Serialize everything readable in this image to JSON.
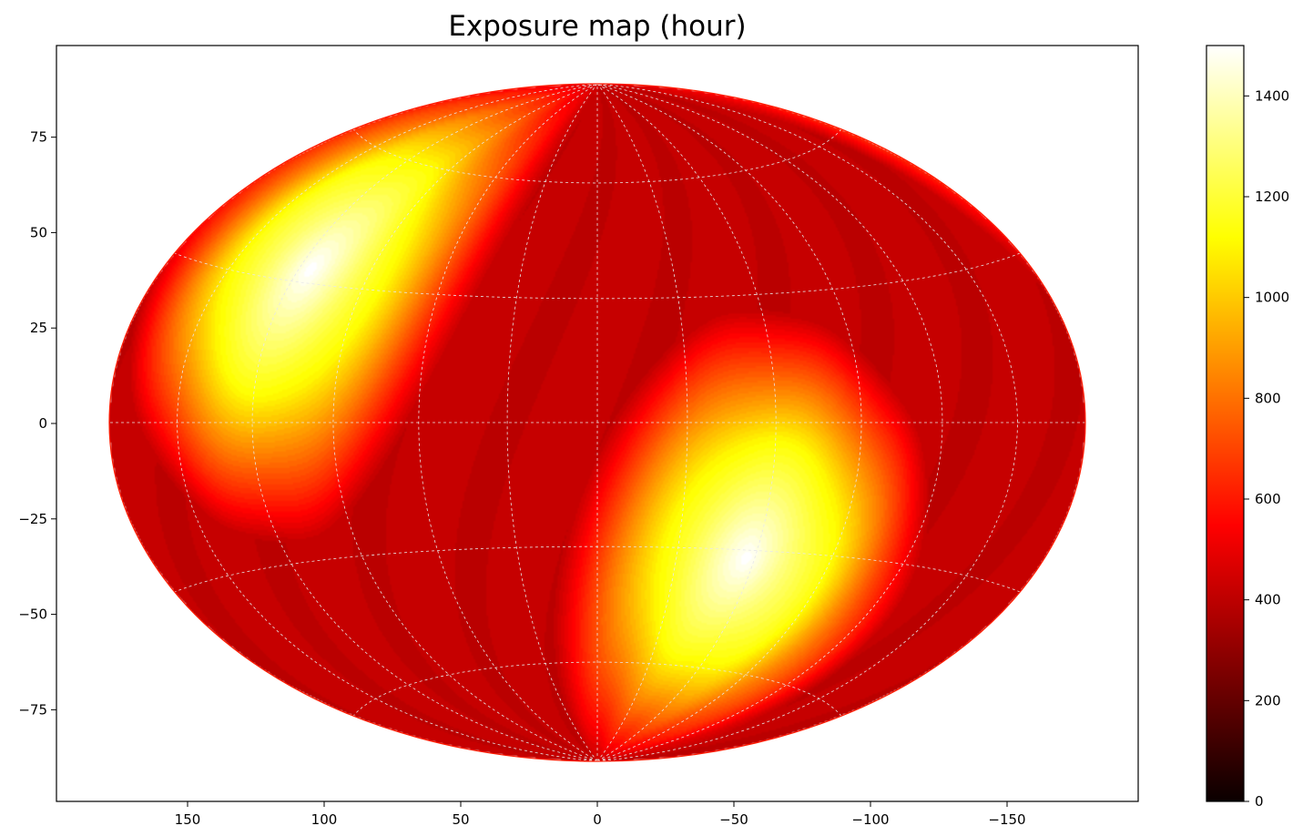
{
  "chart_data": {
    "type": "heatmap",
    "projection": "hammer-aitoff",
    "title": "Exposure map (hour)",
    "xlabel": "",
    "ylabel": "",
    "x_axis": {
      "direction": "reversed",
      "ticks": [
        150,
        100,
        50,
        0,
        -50,
        -100,
        -150
      ],
      "tick_labels": [
        "150",
        "100",
        "50",
        "0",
        "−50",
        "−100",
        "−150"
      ],
      "range": [
        198,
        -198
      ]
    },
    "y_axis": {
      "ticks": [
        75,
        50,
        25,
        0,
        -25,
        -50,
        -75
      ],
      "tick_labels": [
        "75",
        "50",
        "25",
        "0",
        "−25",
        "−50",
        "−75"
      ],
      "range": [
        -99,
        99
      ]
    },
    "colorbar": {
      "colormap": "hot",
      "range": [
        0,
        1500
      ],
      "ticks": [
        0,
        200,
        400,
        600,
        800,
        1000,
        1200,
        1400
      ],
      "tick_labels": [
        "0",
        "200",
        "400",
        "600",
        "800",
        "1000",
        "1200",
        "1400"
      ]
    },
    "grid": true,
    "exposure_model": {
      "hotspots": [
        {
          "lon": 115,
          "lat": 33,
          "peak": 1500
        },
        {
          "lon": -57,
          "lat": -32,
          "peak": 1500
        }
      ],
      "baseline_exposure": 420,
      "colors": {
        "outline": "#ff1a00",
        "grid": "#e8e8e8"
      }
    }
  }
}
